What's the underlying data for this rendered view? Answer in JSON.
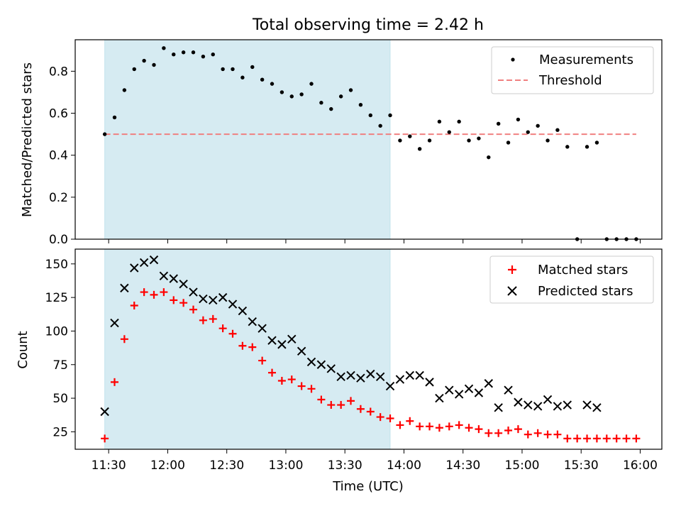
{
  "figure": {
    "title": "Total observing time = 2.42 h",
    "xlabel": "Time (UTC)",
    "x_ticks": [
      "11:30",
      "12:00",
      "12:30",
      "13:00",
      "13:30",
      "14:00",
      "14:30",
      "15:00",
      "15:30",
      "16:00"
    ],
    "shaded_interval": [
      "11:28",
      "13:53"
    ],
    "colors": {
      "shade": "#add8e6",
      "measurement": "#000000",
      "threshold": "#f08080",
      "matched": "#ff0000",
      "predicted": "#000000"
    }
  },
  "chart_data": [
    {
      "type": "scatter",
      "ylabel": "Matched/Predicted stars",
      "xlim": [
        "11:13",
        "16:11"
      ],
      "ylim": [
        0,
        0.95
      ],
      "y_ticks": [
        "0.0",
        "0.2",
        "0.4",
        "0.6",
        "0.8"
      ],
      "legend": {
        "position": "top-right",
        "entries": [
          "Measurements",
          "Threshold"
        ]
      },
      "threshold": {
        "name": "Threshold",
        "value": 0.5,
        "x_range": [
          "11:28",
          "15:58"
        ]
      },
      "series": [
        {
          "name": "Measurements",
          "x": [
            "11:28",
            "11:33",
            "11:38",
            "11:43",
            "11:48",
            "11:53",
            "11:58",
            "12:03",
            "12:08",
            "12:13",
            "12:18",
            "12:23",
            "12:28",
            "12:33",
            "12:38",
            "12:43",
            "12:48",
            "12:53",
            "12:58",
            "13:03",
            "13:08",
            "13:13",
            "13:18",
            "13:23",
            "13:28",
            "13:33",
            "13:38",
            "13:43",
            "13:48",
            "13:53",
            "13:58",
            "14:03",
            "14:08",
            "14:13",
            "14:18",
            "14:23",
            "14:28",
            "14:33",
            "14:38",
            "14:43",
            "14:48",
            "14:53",
            "14:58",
            "15:03",
            "15:08",
            "15:13",
            "15:18",
            "15:23",
            "15:28",
            "15:33",
            "15:38",
            "15:43",
            "15:48",
            "15:53",
            "15:58"
          ],
          "y": [
            0.5,
            0.58,
            0.71,
            0.81,
            0.85,
            0.83,
            0.91,
            0.88,
            0.89,
            0.89,
            0.87,
            0.88,
            0.81,
            0.81,
            0.77,
            0.82,
            0.76,
            0.74,
            0.7,
            0.68,
            0.69,
            0.74,
            0.65,
            0.62,
            0.68,
            0.71,
            0.64,
            0.59,
            0.54,
            0.59,
            0.47,
            0.49,
            0.43,
            0.47,
            0.56,
            0.51,
            0.56,
            0.47,
            0.48,
            0.39,
            0.55,
            0.46,
            0.57,
            0.51,
            0.54,
            0.47,
            0.52,
            0.44,
            0.0,
            0.44,
            0.46,
            0.0,
            0.0,
            0.0,
            0.0
          ]
        }
      ]
    },
    {
      "type": "scatter",
      "ylabel": "Count",
      "xlim": [
        "11:13",
        "16:11"
      ],
      "ylim": [
        12,
        161
      ],
      "y_ticks": [
        "25",
        "50",
        "75",
        "100",
        "125",
        "150"
      ],
      "legend": {
        "position": "top-right",
        "entries": [
          "Matched stars",
          "Predicted stars"
        ]
      },
      "series": [
        {
          "name": "Matched stars",
          "x": [
            "11:28",
            "11:33",
            "11:38",
            "11:43",
            "11:48",
            "11:53",
            "11:58",
            "12:03",
            "12:08",
            "12:13",
            "12:18",
            "12:23",
            "12:28",
            "12:33",
            "12:38",
            "12:43",
            "12:48",
            "12:53",
            "12:58",
            "13:03",
            "13:08",
            "13:13",
            "13:18",
            "13:23",
            "13:28",
            "13:33",
            "13:38",
            "13:43",
            "13:48",
            "13:53",
            "13:58",
            "14:03",
            "14:08",
            "14:13",
            "14:18",
            "14:23",
            "14:28",
            "14:33",
            "14:38",
            "14:43",
            "14:48",
            "14:53",
            "14:58",
            "15:03",
            "15:08",
            "15:13",
            "15:18",
            "15:23",
            "15:28",
            "15:33",
            "15:38",
            "15:43",
            "15:48",
            "15:53",
            "15:58"
          ],
          "y": [
            20,
            62,
            94,
            119,
            129,
            127,
            129,
            123,
            121,
            116,
            108,
            109,
            102,
            98,
            89,
            88,
            78,
            69,
            63,
            64,
            59,
            57,
            49,
            45,
            45,
            48,
            42,
            40,
            36,
            35,
            30,
            33,
            29,
            29,
            28,
            29,
            30,
            28,
            27,
            24,
            24,
            26,
            27,
            23,
            24,
            23,
            23,
            20,
            20,
            20,
            20,
            20,
            20,
            20,
            20
          ]
        },
        {
          "name": "Predicted stars",
          "x": [
            "11:28",
            "11:33",
            "11:38",
            "11:43",
            "11:48",
            "11:53",
            "11:58",
            "12:03",
            "12:08",
            "12:13",
            "12:18",
            "12:23",
            "12:28",
            "12:33",
            "12:38",
            "12:43",
            "12:48",
            "12:53",
            "12:58",
            "13:03",
            "13:08",
            "13:13",
            "13:18",
            "13:23",
            "13:28",
            "13:33",
            "13:38",
            "13:43",
            "13:48",
            "13:53",
            "13:58",
            "14:03",
            "14:08",
            "14:13",
            "14:18",
            "14:23",
            "14:28",
            "14:33",
            "14:38",
            "14:43",
            "14:48",
            "14:53",
            "14:58",
            "15:03",
            "15:08",
            "15:13",
            "15:18",
            "15:23",
            "15:33",
            "15:38"
          ],
          "y": [
            40,
            106,
            132,
            147,
            151,
            153,
            141,
            139,
            135,
            129,
            124,
            123,
            125,
            120,
            115,
            107,
            102,
            93,
            90,
            94,
            85,
            77,
            75,
            72,
            66,
            67,
            65,
            68,
            66,
            59,
            64,
            67,
            67,
            62,
            50,
            56,
            53,
            57,
            54,
            61,
            43,
            56,
            47,
            45,
            44,
            49,
            44,
            45,
            45,
            43
          ]
        }
      ]
    }
  ]
}
